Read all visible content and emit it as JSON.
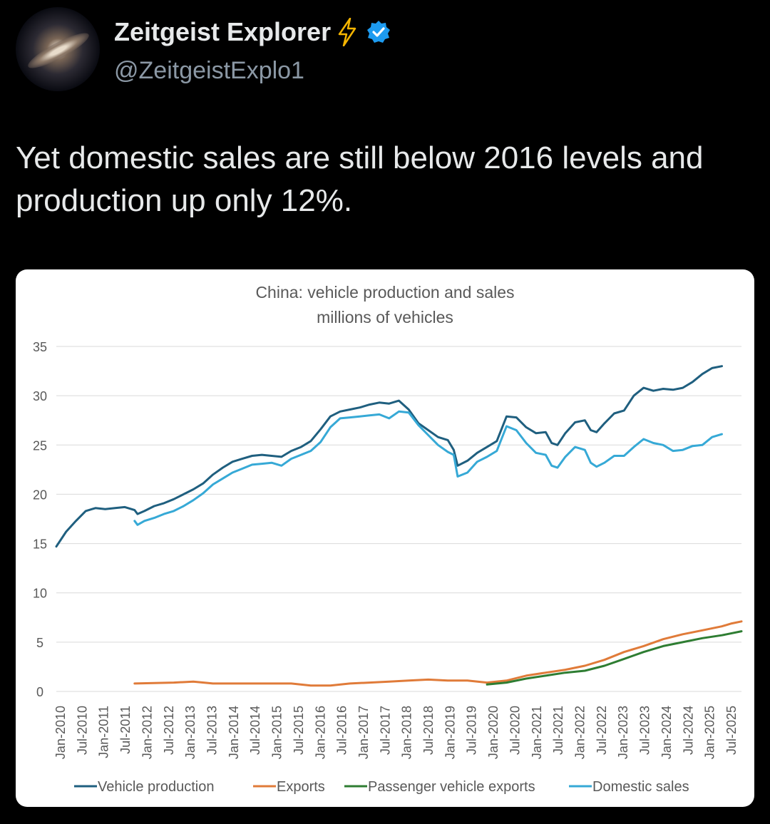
{
  "post": {
    "display_name": "Zeitgeist Explorer",
    "handle": "@ZeitgeistExplo1",
    "text": "Yet domestic sales are still below 2016 levels and production up only 12%."
  },
  "icons": {
    "avatar": "galaxy-avatar",
    "badge": "lightning-bolt-icon",
    "verified": "verified-badge-icon"
  },
  "colors": {
    "verified": "#1d9bf0",
    "bolt": "#f4b400"
  },
  "chart_data": {
    "type": "line",
    "title": "China: vehicle production and sales",
    "subtitle": "millions of vehicles",
    "ylim": [
      0,
      35
    ],
    "yticks": [
      0,
      5,
      10,
      15,
      20,
      25,
      30,
      35
    ],
    "grid": true,
    "legend_position": "bottom",
    "xlabels": [
      "Jan-2010",
      "Jul-2010",
      "Jan-2011",
      "Jul-2011",
      "Jan-2012",
      "Jul-2012",
      "Jan-2013",
      "Jul-2013",
      "Jan-2014",
      "Jul-2014",
      "Jan-2015",
      "Jul-2015",
      "Jan-2016",
      "Jul-2016",
      "Jan-2017",
      "Jul-2017",
      "Jan-2018",
      "Jul-2018",
      "Jan-2019",
      "Jul-2019",
      "Jan-2020",
      "Jul-2020",
      "Jan-2021",
      "Jul-2021",
      "Jan-2022",
      "Jul-2022",
      "Jan-2023",
      "Jul-2023",
      "Jan-2024",
      "Jul-2024",
      "Jan-2025",
      "Jul-2025"
    ],
    "series": [
      {
        "name": "Vehicle production",
        "color": "#1f5f7f",
        "points": [
          [
            0,
            14.7
          ],
          [
            0.5,
            16.2
          ],
          [
            1,
            17.3
          ],
          [
            1.5,
            18.3
          ],
          [
            2,
            18.6
          ],
          [
            2.5,
            18.5
          ],
          [
            3,
            18.6
          ],
          [
            3.5,
            18.7
          ],
          [
            4,
            18.4
          ],
          [
            4.15,
            18.0
          ],
          [
            4.5,
            18.3
          ],
          [
            5,
            18.8
          ],
          [
            5.5,
            19.1
          ],
          [
            6,
            19.5
          ],
          [
            6.5,
            20.0
          ],
          [
            7,
            20.5
          ],
          [
            7.5,
            21.1
          ],
          [
            8,
            22.0
          ],
          [
            8.5,
            22.7
          ],
          [
            9,
            23.3
          ],
          [
            9.5,
            23.6
          ],
          [
            10,
            23.9
          ],
          [
            10.5,
            24.0
          ],
          [
            11,
            23.9
          ],
          [
            11.5,
            23.8
          ],
          [
            12,
            24.4
          ],
          [
            12.5,
            24.8
          ],
          [
            13,
            25.4
          ],
          [
            13.5,
            26.6
          ],
          [
            14,
            27.9
          ],
          [
            14.5,
            28.4
          ],
          [
            15,
            28.6
          ],
          [
            15.5,
            28.8
          ],
          [
            16,
            29.1
          ],
          [
            16.5,
            29.3
          ],
          [
            17,
            29.2
          ],
          [
            17.5,
            29.5
          ],
          [
            18,
            28.6
          ],
          [
            18.5,
            27.2
          ],
          [
            19,
            26.5
          ],
          [
            19.5,
            25.8
          ],
          [
            20,
            25.5
          ],
          [
            20.3,
            24.5
          ],
          [
            20.5,
            22.9
          ],
          [
            21,
            23.4
          ],
          [
            21.5,
            24.2
          ],
          [
            22,
            24.8
          ],
          [
            22.5,
            25.4
          ],
          [
            23,
            27.9
          ],
          [
            23.5,
            27.8
          ],
          [
            24,
            26.8
          ],
          [
            24.5,
            26.2
          ],
          [
            25,
            26.3
          ],
          [
            25.3,
            25.2
          ],
          [
            25.6,
            25.0
          ],
          [
            26,
            26.2
          ],
          [
            26.5,
            27.3
          ],
          [
            27,
            27.5
          ],
          [
            27.3,
            26.5
          ],
          [
            27.6,
            26.3
          ],
          [
            28,
            27.2
          ],
          [
            28.5,
            28.2
          ],
          [
            29,
            28.5
          ],
          [
            29.5,
            30.0
          ],
          [
            30,
            30.8
          ],
          [
            30.5,
            30.5
          ],
          [
            31,
            30.7
          ],
          [
            31.5,
            30.6
          ],
          [
            32,
            30.8
          ],
          [
            32.5,
            31.4
          ],
          [
            33,
            32.2
          ],
          [
            33.5,
            32.8
          ],
          [
            34,
            33.0
          ]
        ]
      },
      {
        "name": "Exports",
        "color": "#e07b39",
        "points": [
          [
            4,
            0.8
          ],
          [
            6,
            0.9
          ],
          [
            7,
            1.0
          ],
          [
            8,
            0.8
          ],
          [
            12,
            0.8
          ],
          [
            13,
            0.6
          ],
          [
            14,
            0.6
          ],
          [
            15,
            0.8
          ],
          [
            16,
            0.9
          ],
          [
            17,
            1.0
          ],
          [
            18,
            1.1
          ],
          [
            19,
            1.2
          ],
          [
            20,
            1.1
          ],
          [
            21,
            1.1
          ],
          [
            22,
            0.9
          ],
          [
            23,
            1.1
          ],
          [
            24,
            1.6
          ],
          [
            25,
            1.9
          ],
          [
            26,
            2.2
          ],
          [
            27,
            2.6
          ],
          [
            28,
            3.2
          ],
          [
            29,
            4.0
          ],
          [
            30,
            4.6
          ],
          [
            31,
            5.3
          ],
          [
            32,
            5.8
          ],
          [
            33,
            6.2
          ],
          [
            34,
            6.6
          ],
          [
            34.5,
            6.9
          ],
          [
            35,
            7.1
          ]
        ]
      },
      {
        "name": "Passenger vehicle exports",
        "color": "#2e7d32",
        "points": [
          [
            22,
            0.7
          ],
          [
            23,
            0.9
          ],
          [
            24,
            1.3
          ],
          [
            25,
            1.6
          ],
          [
            26,
            1.9
          ],
          [
            27,
            2.1
          ],
          [
            28,
            2.6
          ],
          [
            29,
            3.3
          ],
          [
            30,
            4.0
          ],
          [
            31,
            4.6
          ],
          [
            32,
            5.0
          ],
          [
            33,
            5.4
          ],
          [
            34,
            5.7
          ],
          [
            35,
            6.1
          ]
        ]
      },
      {
        "name": "Domestic sales",
        "color": "#36a9d6",
        "points": [
          [
            4,
            17.3
          ],
          [
            4.15,
            16.9
          ],
          [
            4.5,
            17.3
          ],
          [
            5,
            17.6
          ],
          [
            5.5,
            18.0
          ],
          [
            6,
            18.3
          ],
          [
            6.5,
            18.8
          ],
          [
            7,
            19.4
          ],
          [
            7.5,
            20.1
          ],
          [
            8,
            21.0
          ],
          [
            8.5,
            21.6
          ],
          [
            9,
            22.2
          ],
          [
            9.5,
            22.6
          ],
          [
            10,
            23.0
          ],
          [
            10.5,
            23.1
          ],
          [
            11,
            23.2
          ],
          [
            11.5,
            22.9
          ],
          [
            12,
            23.6
          ],
          [
            12.5,
            24.0
          ],
          [
            13,
            24.4
          ],
          [
            13.5,
            25.3
          ],
          [
            14,
            26.8
          ],
          [
            14.5,
            27.7
          ],
          [
            15,
            27.8
          ],
          [
            15.5,
            27.9
          ],
          [
            16,
            28.0
          ],
          [
            16.5,
            28.1
          ],
          [
            17,
            27.7
          ],
          [
            17.5,
            28.4
          ],
          [
            18,
            28.3
          ],
          [
            18.5,
            27.0
          ],
          [
            19,
            26.0
          ],
          [
            19.5,
            25.0
          ],
          [
            20,
            24.3
          ],
          [
            20.3,
            24.0
          ],
          [
            20.5,
            21.8
          ],
          [
            21,
            22.2
          ],
          [
            21.5,
            23.3
          ],
          [
            22,
            23.8
          ],
          [
            22.5,
            24.4
          ],
          [
            23,
            26.9
          ],
          [
            23.5,
            26.5
          ],
          [
            24,
            25.2
          ],
          [
            24.5,
            24.2
          ],
          [
            25,
            24.0
          ],
          [
            25.3,
            22.9
          ],
          [
            25.6,
            22.7
          ],
          [
            26,
            23.8
          ],
          [
            26.5,
            24.8
          ],
          [
            27,
            24.5
          ],
          [
            27.3,
            23.2
          ],
          [
            27.6,
            22.8
          ],
          [
            28,
            23.2
          ],
          [
            28.5,
            23.9
          ],
          [
            29,
            23.9
          ],
          [
            29.5,
            24.8
          ],
          [
            30,
            25.6
          ],
          [
            30.5,
            25.2
          ],
          [
            31,
            25.0
          ],
          [
            31.5,
            24.4
          ],
          [
            32,
            24.5
          ],
          [
            32.5,
            24.9
          ],
          [
            33,
            25.0
          ],
          [
            33.5,
            25.8
          ],
          [
            34,
            26.1
          ]
        ]
      }
    ]
  }
}
